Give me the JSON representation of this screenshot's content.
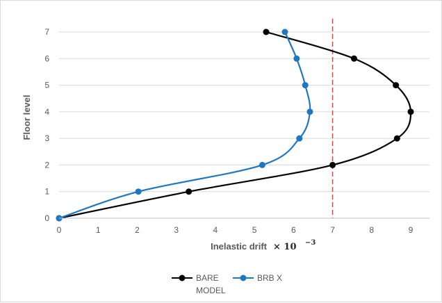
{
  "chart_data": {
    "type": "scatter",
    "xlabel": "Inelastic drift",
    "xlabel_suffix": "× 10",
    "xlabel_exponent": "−3",
    "ylabel": "Floor level",
    "xlim": [
      0,
      10
    ],
    "ylim": [
      0,
      7.5
    ],
    "x_ticks": [
      "0",
      "1",
      "2",
      "3",
      "4",
      "5",
      "6",
      "7",
      "8",
      "9"
    ],
    "y_ticks": [
      "0",
      "1",
      "2",
      "3",
      "4",
      "5",
      "6",
      "7"
    ],
    "grid": "horizontal",
    "legend_position": "bottom",
    "reference_line": {
      "x": 7,
      "color": "#c0504d",
      "style": "dashed"
    },
    "series": [
      {
        "name": "BARE MODEL",
        "name_lines": [
          "BARE",
          "MODEL"
        ],
        "color": "#000000",
        "x": [
          0,
          3.32,
          7.0,
          8.65,
          9.0,
          8.62,
          7.55,
          5.3
        ],
        "y": [
          0,
          1,
          2,
          3,
          4,
          5,
          6,
          7
        ]
      },
      {
        "name": "BRB X",
        "name_lines": [
          "BRB X"
        ],
        "color": "#1f77c4",
        "x": [
          0,
          2.03,
          5.2,
          6.15,
          6.42,
          6.3,
          6.08,
          5.78
        ],
        "y": [
          0,
          1,
          2,
          3,
          4,
          5,
          6,
          7
        ]
      }
    ]
  }
}
